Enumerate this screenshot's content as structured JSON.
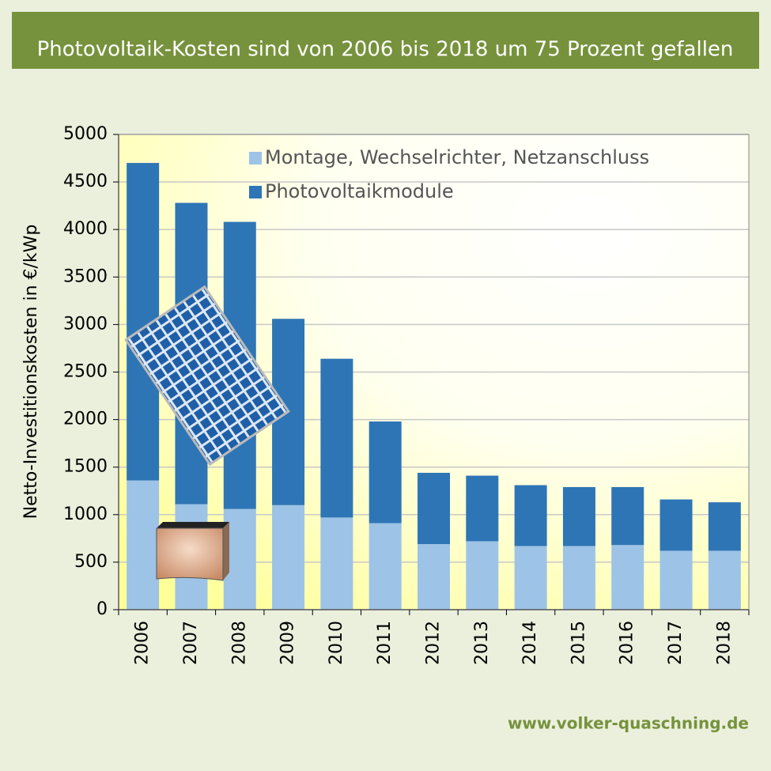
{
  "chart_data": {
    "type": "stacked_bar",
    "title": "Photovoltaik-Kosten sind von 2006 bis 2018 um 75 Prozent gefallen",
    "y_label": "Netto-Investitionskosten in €/kWp",
    "source": "www.volker-quaschning.de",
    "categories": [
      "2006",
      "2007",
      "2008",
      "2009",
      "2010",
      "2011",
      "2012",
      "2013",
      "2014",
      "2015",
      "2016",
      "2017",
      "2018"
    ],
    "series": [
      {
        "name": "Montage, Wechselrichter, Netzanschluss",
        "color": "#9dc3e6",
        "values": [
          1360,
          1110,
          1060,
          1100,
          970,
          910,
          690,
          720,
          670,
          670,
          680,
          620,
          620
        ]
      },
      {
        "name": "Photovoltaikmodule",
        "color": "#2e75b6",
        "values": [
          3340,
          3170,
          3020,
          1960,
          1670,
          1070,
          750,
          690,
          640,
          620,
          610,
          540,
          510
        ]
      }
    ],
    "ylim": [
      0,
      5000
    ],
    "yticks": [
      0,
      500,
      1000,
      1500,
      2000,
      2500,
      3000,
      3500,
      4000,
      4500,
      5000
    ],
    "grid": true
  }
}
